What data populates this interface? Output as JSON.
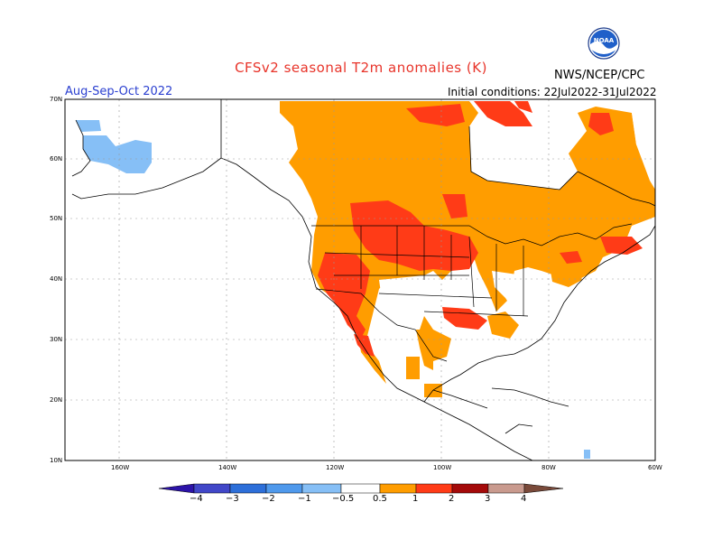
{
  "header": {
    "title": "CFSv2 seasonal T2m anomalies (K)",
    "season": "Aug-Sep-Oct 2022",
    "agency": "NWS/NCEP/CPC",
    "initial_conditions": "Initial conditions: 22Jul2022-31Jul2022",
    "logo_text": "NOAA"
  },
  "map": {
    "lat_labels": [
      "70N",
      "60N",
      "50N",
      "40N",
      "30N",
      "20N",
      "10N"
    ],
    "lon_labels": [
      "160W",
      "140W",
      "120W",
      "100W",
      "80W",
      "60W"
    ],
    "lat_range": [
      10,
      70
    ],
    "lon_range": [
      -170,
      -60
    ]
  },
  "legend": {
    "labels": [
      "−4",
      "−3",
      "−2",
      "−1",
      "−0.5",
      "0.5",
      "1",
      "2",
      "3",
      "4"
    ],
    "colors": [
      "#2c13a8",
      "#4147c8",
      "#2d6fd9",
      "#4f99ec",
      "#86bff6",
      "#ffffff",
      "#ff9d00",
      "#ff3b17",
      "#a40a0a",
      "#c99a8e",
      "#7a4a3a"
    ]
  }
}
